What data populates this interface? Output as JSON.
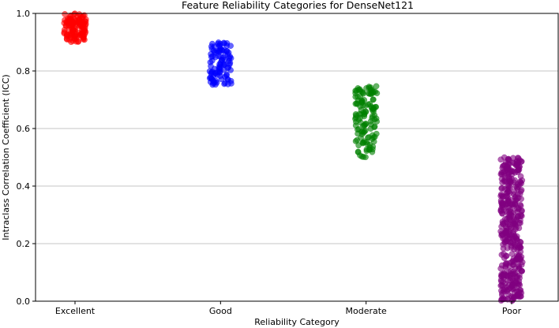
{
  "chart_data": {
    "type": "scatter",
    "title": "Feature Reliability Categories for DenseNet121",
    "xlabel": "Reliability Category",
    "ylabel": "Intraclass Correlation Coefficient (ICC)",
    "ylim": [
      0,
      1.0
    ],
    "yticks": [
      "0.0",
      "0.2",
      "0.4",
      "0.6",
      "0.8",
      "1.0"
    ],
    "grid": "horizontal",
    "categories": [
      "Excellent",
      "Good",
      "Moderate",
      "Poor"
    ],
    "series": [
      {
        "category": "Excellent",
        "color": "#ff0000",
        "range": [
          0.9,
          1.0
        ],
        "count": 130
      },
      {
        "category": "Good",
        "color": "#0000ff",
        "range": [
          0.75,
          0.9
        ],
        "count": 100
      },
      {
        "category": "Moderate",
        "color": "#008000",
        "range": [
          0.5,
          0.75
        ],
        "count": 130
      },
      {
        "category": "Poor",
        "color": "#800080",
        "range": [
          0.0,
          0.5
        ],
        "count": 420
      }
    ]
  }
}
